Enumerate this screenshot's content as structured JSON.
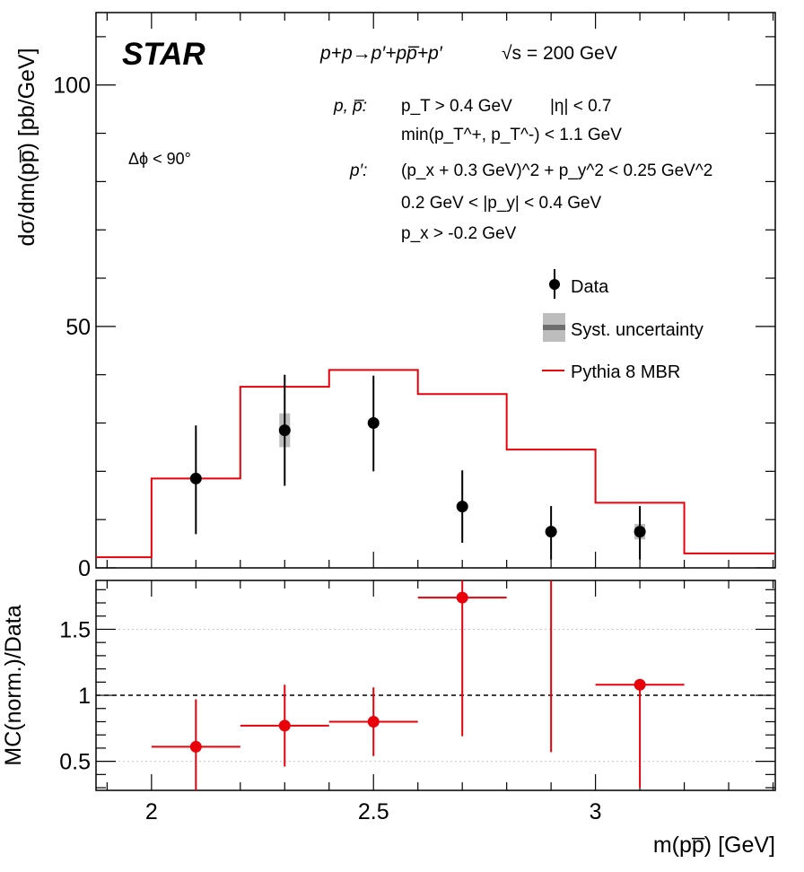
{
  "chart_data": [
    {
      "type": "line",
      "experiment_label": "STAR",
      "process": "p+p→p′+pp̅+p′",
      "energy": "√s = 200 GeV",
      "ylabel": "dσ/dm(pp̅) [pb/GeV]",
      "xlim": [
        1.875,
        3.405
      ],
      "ylim": [
        0,
        115
      ],
      "yticks": [
        "0",
        "50",
        "100"
      ],
      "cuts": {
        "proton_label": "p, p̅:",
        "proton_cut_1a": "p_T > 0.4 GeV",
        "proton_cut_1b": "|η| < 0.7",
        "proton_cut_2": "min(p_T^+, p_T^-) < 1.1 GeV",
        "forward_label": "p′:",
        "forward_cut_1": "(p_x + 0.3 GeV)^2 + p_y^2 < 0.25 GeV^2",
        "forward_cut_2": "0.2 GeV < |p_y| < 0.4 GeV",
        "forward_cut_3": "p_x > -0.2 GeV"
      },
      "dphi_label": "Δϕ < 90°",
      "legend": {
        "data": "Data",
        "syst": "Syst. uncertainty",
        "mc": "Pythia 8 MBR",
        "position": "right"
      },
      "series": [
        {
          "name": "Data",
          "kind": "points",
          "color": "#000000",
          "x": [
            2.1,
            2.3,
            2.5,
            2.7,
            2.9,
            3.1
          ],
          "y": [
            18.5,
            28.5,
            30.0,
            12.7,
            7.5,
            7.5
          ],
          "y_err_low": [
            11.5,
            11.5,
            10.0,
            7.5,
            5.8,
            5.8
          ],
          "y_err_high": [
            11.0,
            11.5,
            9.8,
            7.5,
            5.3,
            5.3
          ],
          "syst": [
            0.5,
            3.5,
            0.5,
            0.5,
            0.5,
            1.6
          ]
        },
        {
          "name": "Pythia 8 MBR",
          "kind": "histogram",
          "color": "#e8000b",
          "edges": [
            1.875,
            2.0,
            2.2,
            2.4,
            2.6,
            2.8,
            3.0,
            3.2,
            3.405
          ],
          "values": [
            2.2,
            18.5,
            37.5,
            41.0,
            36.0,
            24.5,
            13.5,
            3.0
          ]
        }
      ]
    },
    {
      "type": "scatter",
      "ylabel": "MC(norm.)/Data",
      "xlabel": "m(pp̅) [GeV]",
      "xlim": [
        1.875,
        3.405
      ],
      "ylim": [
        0.28,
        1.87
      ],
      "xticks": [
        "2",
        "2.5",
        "3"
      ],
      "yticks": [
        "0.5",
        "1",
        "1.5"
      ],
      "reference_line": 1.0,
      "grid": "horizontal dotted",
      "series": [
        {
          "name": "MC(norm.)/Data",
          "color": "#e8000b",
          "x": [
            2.1,
            2.3,
            2.5,
            2.7,
            3.1
          ],
          "x_halfwidth": [
            0.1,
            0.1,
            0.1,
            0.1,
            0.1
          ],
          "y": [
            0.61,
            0.77,
            0.8,
            1.74,
            1.08
          ],
          "y_err_low": [
            0.33,
            0.31,
            0.26,
            1.05,
            0.78
          ],
          "y_err_high": [
            0.36,
            0.31,
            0.26,
            0.16,
            0.0
          ]
        },
        {
          "name": "error only",
          "color": "#e8000b",
          "x": [
            2.9
          ],
          "y_low": [
            0.57
          ],
          "y_high": [
            1.87
          ]
        }
      ]
    }
  ]
}
